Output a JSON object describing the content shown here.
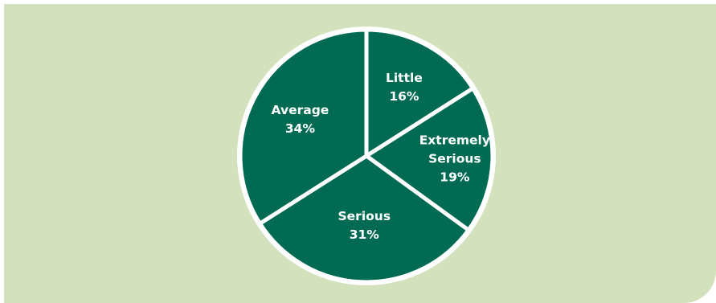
{
  "chart_data": {
    "type": "pie",
    "slices": [
      {
        "label": [
          "Little"
        ],
        "value": 16,
        "value_label": "16%"
      },
      {
        "label": [
          "Extremely",
          "Serious"
        ],
        "value": 19,
        "value_label": "19%"
      },
      {
        "label": [
          "Serious"
        ],
        "value": 31,
        "value_label": "31%"
      },
      {
        "label": [
          "Average"
        ],
        "value": 34,
        "value_label": "34%"
      }
    ],
    "start_angle_deg": 0,
    "direction": "clockwise",
    "legend": "none"
  },
  "colors": {
    "slice_fill": "#006b52",
    "separator": "#ffffff",
    "background_panel": "#d3e1bd",
    "page_background": "#ffffff",
    "label_text": "#ffffff"
  }
}
